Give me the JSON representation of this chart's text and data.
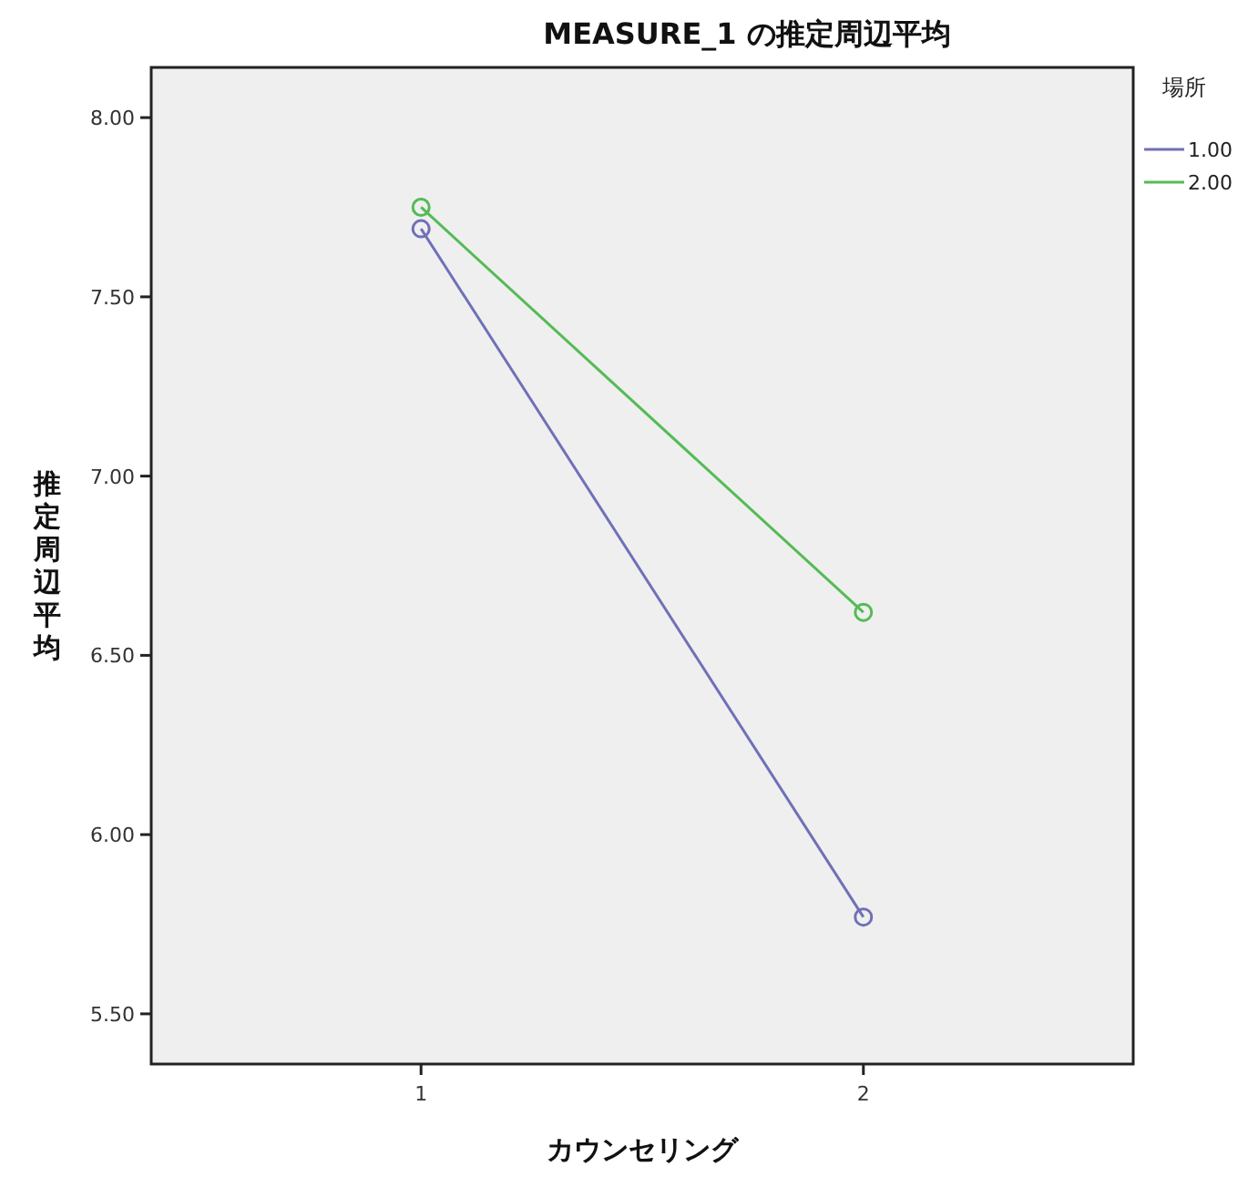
{
  "chart_data": {
    "type": "line",
    "title": "MEASURE_1 の推定周辺平均",
    "xlabel": "カウンセリング",
    "ylabel": "推定周辺平均",
    "legend_title": "場所",
    "categories": [
      "1",
      "2"
    ],
    "series": [
      {
        "name": "1.00",
        "color": "#7070b8",
        "values": [
          7.69,
          5.77
        ]
      },
      {
        "name": "2.00",
        "color": "#55bb55",
        "values": [
          7.75,
          6.62
        ]
      }
    ],
    "ylim": [
      5.36,
      8.14
    ],
    "yticks": [
      {
        "value": 5.5,
        "label": "5.50"
      },
      {
        "value": 6,
        "label": "6.00"
      },
      {
        "value": 6.5,
        "label": "6.50"
      },
      {
        "value": 7,
        "label": "7.00"
      },
      {
        "value": 7.5,
        "label": "7.50"
      },
      {
        "value": 8,
        "label": "8.00"
      }
    ],
    "marker": "circle",
    "legend": "top right",
    "grid": false
  }
}
